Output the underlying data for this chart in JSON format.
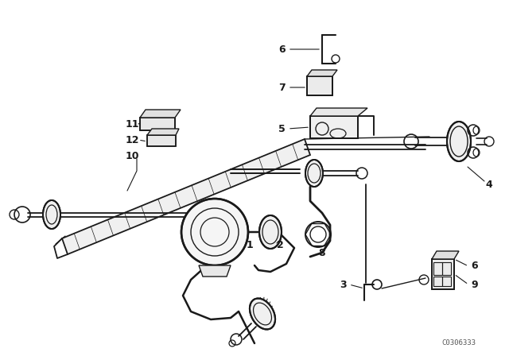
{
  "bg_color": "#ffffff",
  "line_color": "#1a1a1a",
  "watermark": "C0306333",
  "figsize": [
    6.4,
    4.48
  ],
  "dpi": 100,
  "parts": {
    "label_fontsize": 9,
    "label_fontweight": "bold"
  }
}
